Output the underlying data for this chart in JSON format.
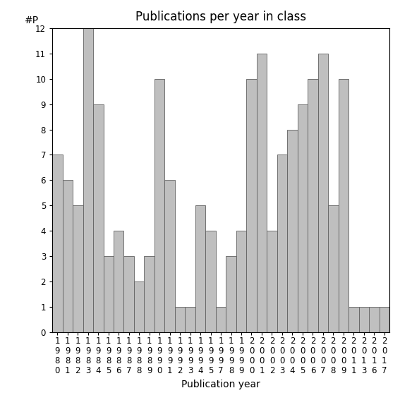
{
  "years": [
    "1980",
    "1981",
    "1982",
    "1983",
    "1984",
    "1985",
    "1986",
    "1987",
    "1988",
    "1989",
    "1990",
    "1991",
    "1992",
    "1993",
    "1994",
    "1995",
    "1997",
    "1998",
    "1999",
    "2000",
    "2001",
    "2002",
    "2003",
    "2004",
    "2005",
    "2006",
    "2007",
    "2008",
    "2009",
    "2011",
    "2013",
    "2016",
    "2017"
  ],
  "values": [
    7,
    6,
    5,
    12,
    9,
    3,
    4,
    3,
    2,
    3,
    10,
    6,
    1,
    1,
    5,
    4,
    1,
    3,
    4,
    10,
    11,
    4,
    7,
    8,
    9,
    10,
    11,
    5,
    10,
    1,
    1,
    1,
    1
  ],
  "bar_color": "#bfbfbf",
  "bar_edgecolor": "#606060",
  "title": "Publications per year in class",
  "xlabel": "Publication year",
  "ylabel": "#P",
  "ylim": [
    0,
    12
  ],
  "yticks": [
    0,
    1,
    2,
    3,
    4,
    5,
    6,
    7,
    8,
    9,
    10,
    11,
    12
  ],
  "title_fontsize": 12,
  "label_fontsize": 10,
  "tick_fontsize": 8.5,
  "background_color": "#ffffff"
}
